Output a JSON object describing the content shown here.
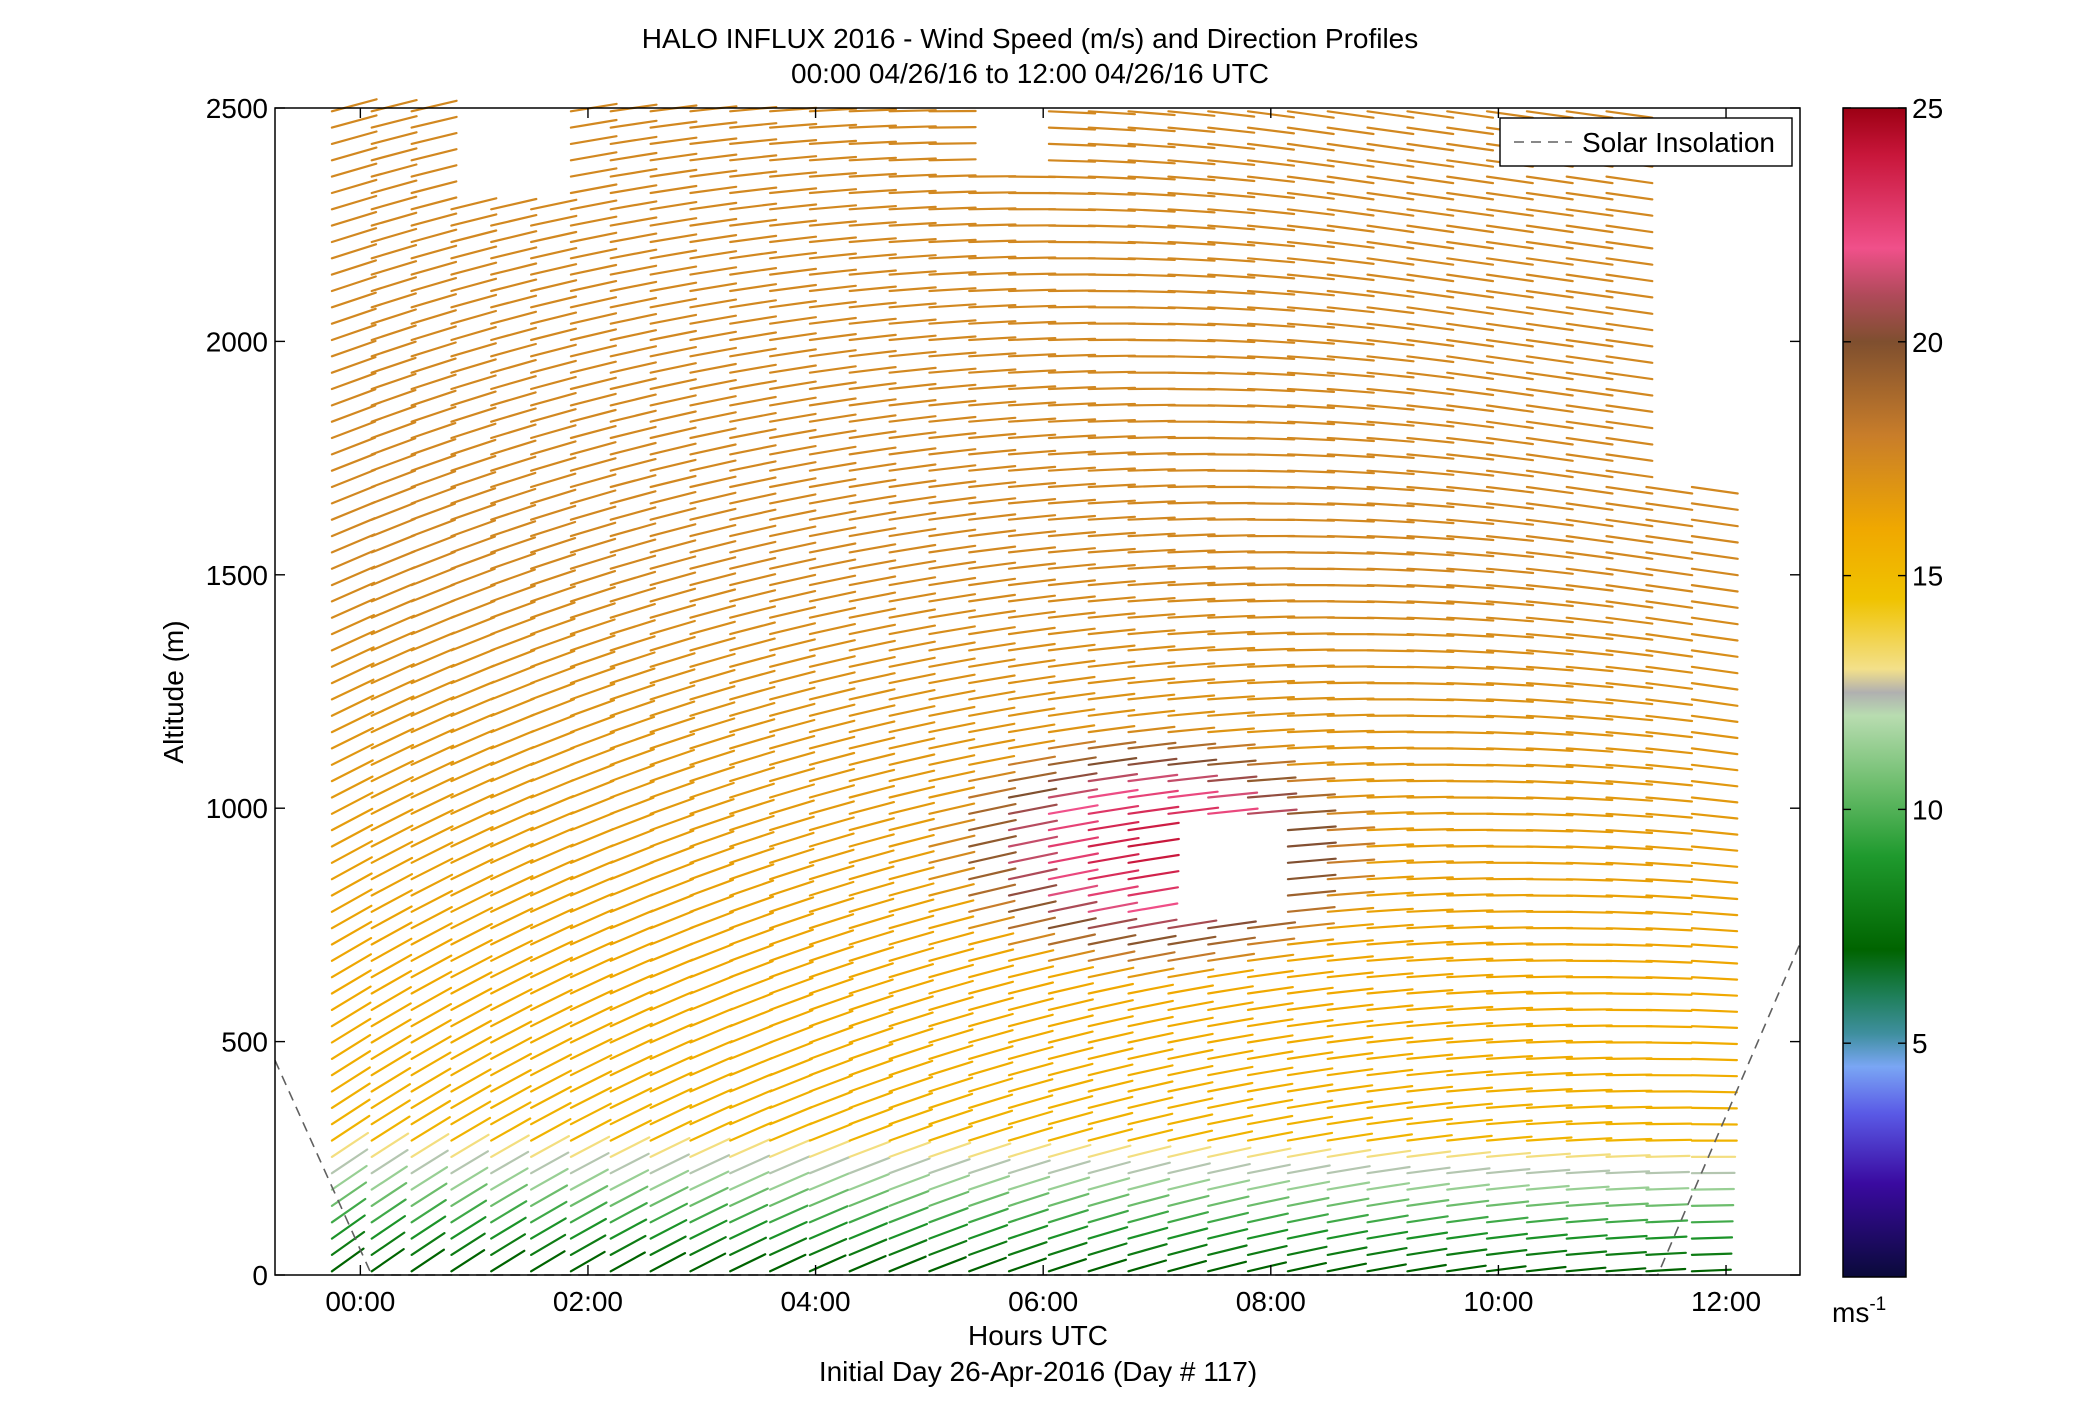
{
  "title_line1": "HALO INFLUX 2016 - Wind Speed (m/s) and Direction Profiles",
  "title_line2": "00:00 04/26/16 to 12:00 04/26/16  UTC",
  "footer": "Initial Day 26-Apr-2016 (Day # 117)",
  "legend": {
    "label": "Solar Insolation",
    "placement": "top-right",
    "style": "dashed",
    "color": "#606060"
  },
  "chart_data": {
    "type": "quiver",
    "xlabel": "Hours UTC",
    "ylabel": "Altitude (m)",
    "xlim": [
      -0.75,
      12.65
    ],
    "ylim": [
      0,
      2500
    ],
    "x_ticks": [
      0,
      2,
      4,
      6,
      8,
      10,
      12
    ],
    "x_tick_labels": [
      "00:00",
      "02:00",
      "04:00",
      "06:00",
      "08:00",
      "10:00",
      "12:00"
    ],
    "y_ticks": [
      0,
      500,
      1000,
      1500,
      2000,
      2500
    ],
    "y_tick_labels": [
      "0",
      "500",
      "1000",
      "1500",
      "2000",
      "2500"
    ],
    "grid": false,
    "colorbar": {
      "label": "ms⁻¹",
      "range": [
        0,
        25
      ],
      "ticks": [
        5,
        10,
        15,
        20,
        25
      ],
      "tick_labels": [
        "5",
        "10",
        "15",
        "20",
        "25"
      ],
      "stops": [
        {
          "v": 0,
          "c": "#0a0a3a"
        },
        {
          "v": 2,
          "c": "#3a0aa0"
        },
        {
          "v": 3.5,
          "c": "#5a5ae6"
        },
        {
          "v": 4.5,
          "c": "#7aa6f4"
        },
        {
          "v": 5.2,
          "c": "#3f8f9f"
        },
        {
          "v": 6,
          "c": "#1f7f5a"
        },
        {
          "v": 7,
          "c": "#006400"
        },
        {
          "v": 9,
          "c": "#1f9a2e"
        },
        {
          "v": 10.5,
          "c": "#6cbd6c"
        },
        {
          "v": 12,
          "c": "#b8dcb0"
        },
        {
          "v": 12.5,
          "c": "#b0b0b0"
        },
        {
          "v": 13,
          "c": "#f3e08a"
        },
        {
          "v": 14.5,
          "c": "#f0c300"
        },
        {
          "v": 16,
          "c": "#f0a800"
        },
        {
          "v": 18,
          "c": "#c87d2a"
        },
        {
          "v": 20,
          "c": "#7f4f2f"
        },
        {
          "v": 21,
          "c": "#b04a5a"
        },
        {
          "v": 22,
          "c": "#f0508a"
        },
        {
          "v": 24,
          "c": "#c8163a"
        },
        {
          "v": 25,
          "c": "#9c0014"
        }
      ]
    },
    "profile_times": [
      -0.25,
      0.1,
      0.45,
      0.8,
      1.15,
      1.5,
      1.85,
      2.2,
      2.55,
      2.9,
      3.25,
      3.6,
      3.95,
      4.3,
      4.65,
      5.0,
      5.35,
      5.7,
      6.05,
      6.4,
      6.75,
      7.1,
      7.45,
      7.8,
      8.15,
      8.5,
      8.85,
      9.2,
      9.55,
      9.9,
      10.25,
      10.6,
      10.95,
      11.3,
      11.7
    ],
    "altitude_top_by_profile": [
      2500,
      2500,
      2500,
      2500,
      2500,
      2500,
      2500,
      2500,
      2500,
      2500,
      2500,
      2500,
      2500,
      2500,
      2500,
      2500,
      2500,
      2500,
      2500,
      2500,
      2500,
      2500,
      2500,
      2500,
      2500,
      2500,
      2500,
      2500,
      2500,
      2500,
      2500,
      2500,
      2500,
      1700,
      1700
    ],
    "gaps": [
      {
        "t": [
          7.1,
          7.8
        ],
        "z": [
          750,
          950
        ]
      },
      {
        "t": [
          0.8,
          1.5
        ],
        "z": [
          2300,
          2500
        ]
      },
      {
        "t": [
          5.35,
          5.7
        ],
        "z": [
          2350,
          2500
        ]
      }
    ],
    "wind_field_description": "speed(m/s) ~ 7-9 near surface, max ~24-25 around 6-7.5 h at 700-1000 m, 15-18 aloft; direction roughly westerly-southwesterly",
    "solar_insolation": [
      {
        "x": -0.75,
        "y": 460
      },
      {
        "x": 0.1,
        "y": 0
      },
      {
        "x": 11.4,
        "y": 0
      },
      {
        "x": 12.65,
        "y": 710
      }
    ]
  }
}
